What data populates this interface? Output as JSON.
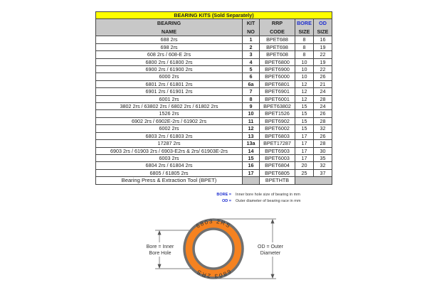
{
  "table": {
    "title": "BEARING KITS (Sold Separately)",
    "headers": {
      "name": [
        "BEARING",
        "NAME"
      ],
      "kit": [
        "KIT",
        "NO"
      ],
      "rrp": [
        "RRP",
        "CODE"
      ],
      "bore": [
        "BORE",
        "SIZE"
      ],
      "od": [
        "OD",
        "SIZE"
      ]
    },
    "rows": [
      {
        "name": "688 2rs",
        "kit": "1",
        "code": "BPET688",
        "bore": "8",
        "od": "16"
      },
      {
        "name": "698 2rs",
        "kit": "2",
        "code": "BPET698",
        "bore": "8",
        "od": "19"
      },
      {
        "name": "608 2rs / 608-E 2rs",
        "kit": "3",
        "code": "BPET608",
        "bore": "8",
        "od": "22"
      },
      {
        "name": "6800 2rs / 61800 2rs",
        "kit": "4",
        "code": "BPET6800",
        "bore": "10",
        "od": "19"
      },
      {
        "name": "6900 2rs / 61900 2rs",
        "kit": "5",
        "code": "BPET6900",
        "bore": "10",
        "od": "22"
      },
      {
        "name": "6000 2rs",
        "kit": "6",
        "code": "BPET6000",
        "bore": "10",
        "od": "26"
      },
      {
        "name": "6801 2rs / 61801 2rs",
        "kit": "6a",
        "code": "BPET6801",
        "bore": "12",
        "od": "21"
      },
      {
        "name": "6901 2rs / 61901 2rs",
        "kit": "7",
        "code": "BPET6901",
        "bore": "12",
        "od": "24"
      },
      {
        "name": "6001 2rs",
        "kit": "8",
        "code": "BPET6001",
        "bore": "12",
        "od": "28"
      },
      {
        "name": "3802 2rs / 63802 2rs / 6802 2rs / 61802 2rs",
        "kit": "9",
        "code": "BPET63802",
        "bore": "15",
        "od": "24"
      },
      {
        "name": "1526 2rs",
        "kit": "10",
        "code": "BPET1526",
        "bore": "15",
        "od": "26"
      },
      {
        "name": "6902 2rs / 6902E-2rs / 61902 2rs",
        "kit": "11",
        "code": "BPET6902",
        "bore": "15",
        "od": "28"
      },
      {
        "name": "6002 2rs",
        "kit": "12",
        "code": "BPET6002",
        "bore": "15",
        "od": "32"
      },
      {
        "name": "6803 2rs / 61803 2rs",
        "kit": "13",
        "code": "BPET6803",
        "bore": "17",
        "od": "26"
      },
      {
        "name": "17287 2rs",
        "kit": "13a",
        "code": "BPET17287",
        "bore": "17",
        "od": "28"
      },
      {
        "name": "6903 2rs / 61903 2rs / 6903-E2rs & 2rs/  61903E-2rs",
        "kit": "14",
        "code": "BPET6903",
        "bore": "17",
        "od": "30"
      },
      {
        "name": "6003 2rs",
        "kit": "15",
        "code": "BPET6003",
        "bore": "17",
        "od": "35"
      },
      {
        "name": "6804 2rs / 61804 2rs",
        "kit": "16",
        "code": "BPET6804",
        "bore": "20",
        "od": "32"
      },
      {
        "name": "6805 / 61805 2rs",
        "kit": "17",
        "code": "BPET6805",
        "bore": "25",
        "od": "37"
      }
    ],
    "tool_row": {
      "name": "Bearing Press & Extraction Tool (BPET)",
      "code": "BPETHTB"
    }
  },
  "legend": [
    {
      "key": "BORE =",
      "text": "Inner bore hole size of bearing in mm"
    },
    {
      "key": "OD =",
      "text": "Outer diameter of bearing race in mm"
    }
  ],
  "diagram": {
    "bore_label": [
      "Bore = Inner",
      "Bore Hole"
    ],
    "od_label": [
      "OD = Outer",
      "Diameter"
    ],
    "ring_text_top": "6803  2RS",
    "ring_text_bottom": "6803  2RS",
    "colors": {
      "ring": "#f58220",
      "rim": "#707070",
      "title_bg": "#ffff00",
      "header_bg": "#c8c8c8",
      "accent": "#1f2fd0"
    }
  }
}
